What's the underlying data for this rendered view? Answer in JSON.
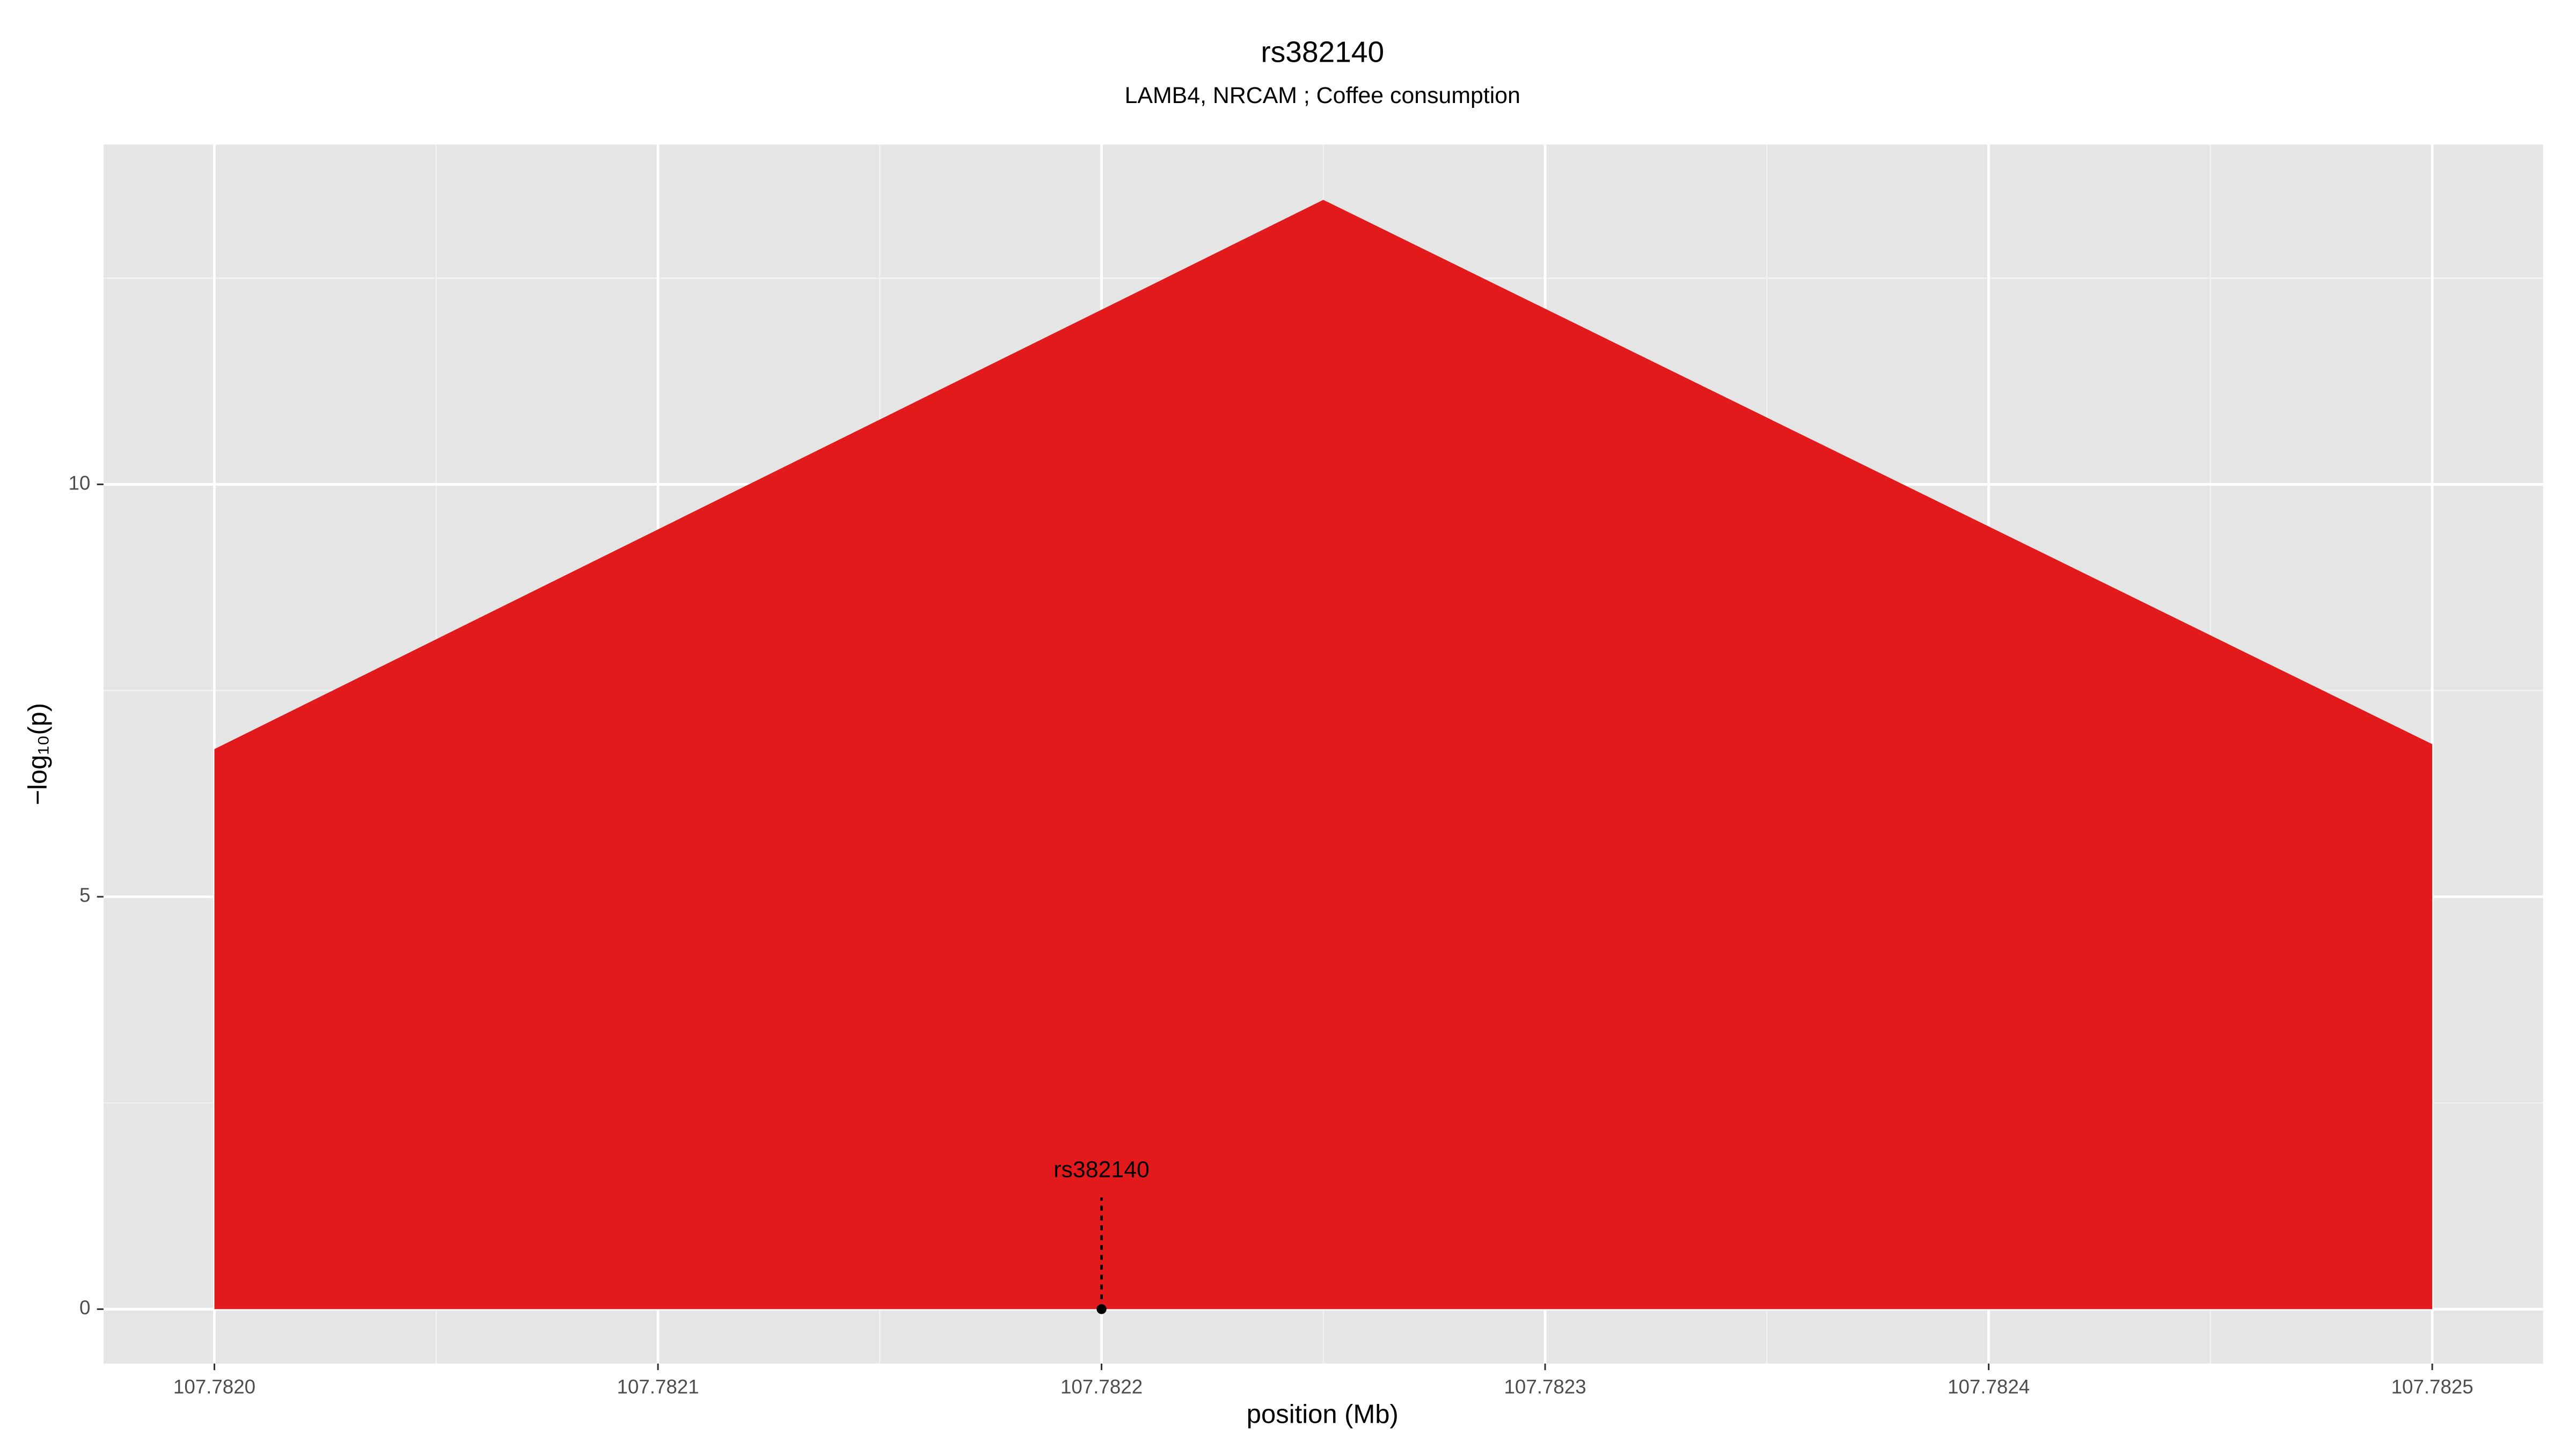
{
  "chart_data": {
    "type": "area",
    "title": "rs382140",
    "subtitle": "LAMB4, NRCAM ; Coffee consumption",
    "x_label": "position (Mb)",
    "y_label": "−log₁₀(p)",
    "x": [
      107.782,
      107.78225,
      107.7825
    ],
    "series": [
      {
        "color": "#e31a1c",
        "values": [
          6.79,
          13.45,
          6.85
        ]
      }
    ],
    "xlim": [
      107.781975,
      107.782525
    ],
    "ylim": [
      -0.66,
      14.12
    ],
    "xticks": [
      {
        "value": 107.782,
        "label": "107.7820"
      },
      107.7821,
      107.7822,
      107.7823,
      107.7824,
      107.7825
    ],
    "yticks": [
      0,
      5,
      10
    ],
    "grid": true,
    "annotations": [
      {
        "label": "rs382140",
        "x": 107.7822,
        "y": 0
      }
    ]
  }
}
